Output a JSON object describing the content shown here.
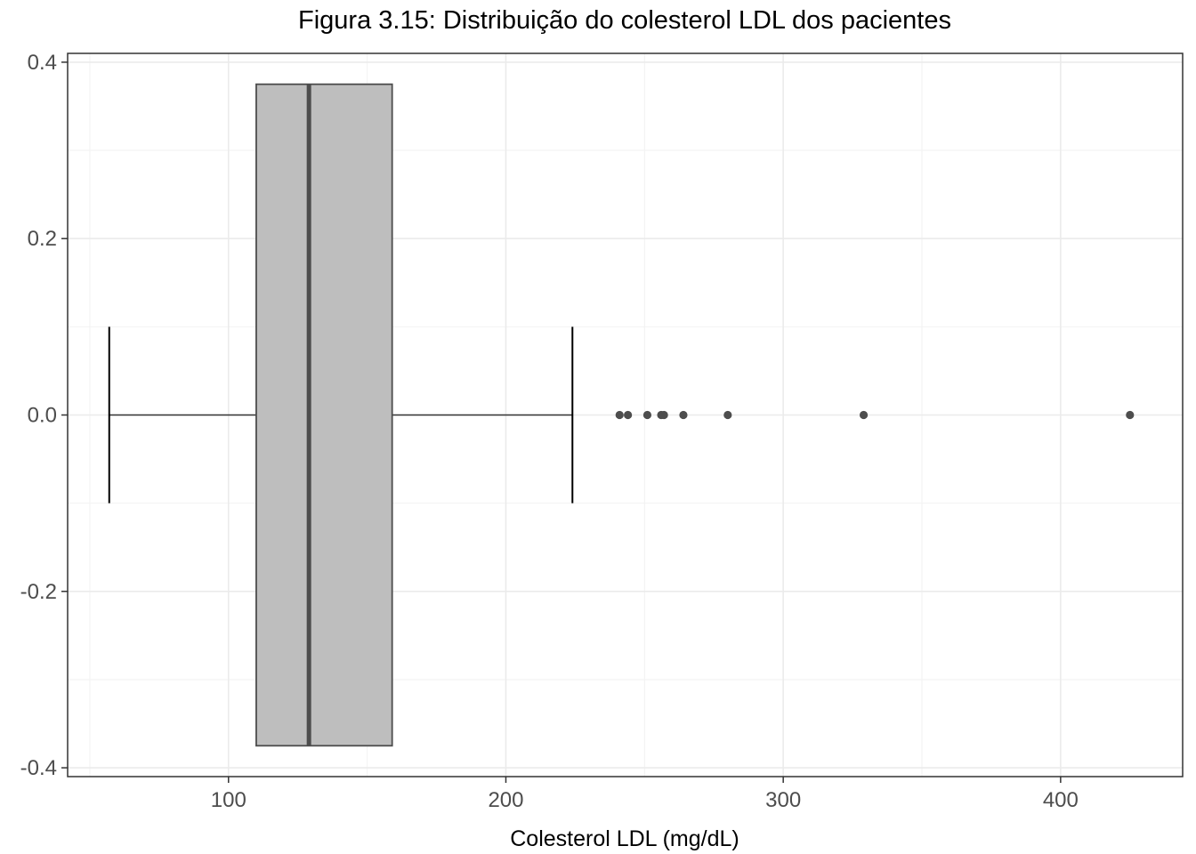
{
  "chart_data": {
    "type": "boxplot",
    "orientation": "horizontal",
    "title": "Figura 3.15: Distribuição do colesterol LDL dos pacientes",
    "xlabel": "Colesterol LDL (mg/dL)",
    "ylabel": "",
    "xlim": [
      42,
      444
    ],
    "ylim": [
      -0.41,
      0.41
    ],
    "x_ticks": [
      100,
      200,
      300,
      400
    ],
    "x_tick_labels": [
      "100",
      "200",
      "300",
      "400"
    ],
    "y_ticks": [
      0.4,
      0.2,
      0.0,
      -0.2,
      -0.4
    ],
    "y_tick_labels": [
      "0.4",
      "0.2",
      "0.0",
      "-0.2",
      "-0.4"
    ],
    "grid": true,
    "legend": "none",
    "box": {
      "whisker_low": 57,
      "q1": 110,
      "median": 129,
      "q3": 159,
      "whisker_high": 224,
      "y_center": 0.0,
      "box_half_height": 0.375,
      "whisker_cap_half_height": 0.1,
      "fill_color": "#bebebe",
      "outline_color": "#4d4d4d"
    },
    "outliers": [
      241,
      244,
      251,
      256,
      257,
      264,
      280,
      329,
      425
    ]
  }
}
